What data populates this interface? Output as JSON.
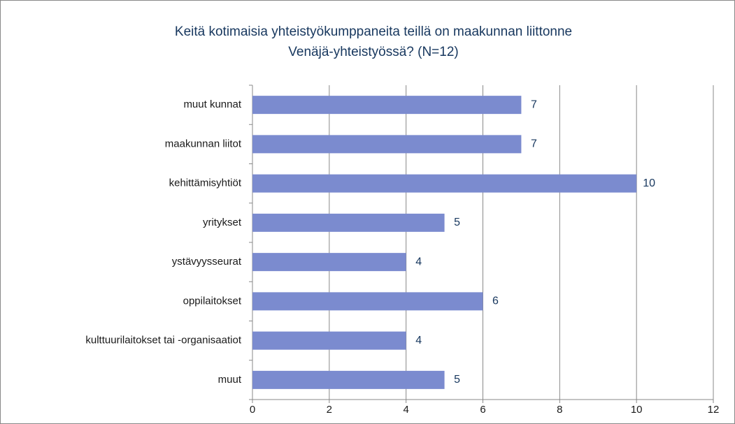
{
  "chart_data": {
    "type": "bar",
    "orientation": "horizontal",
    "title": [
      "Keitä kotimaisia yhteistyökumppaneita teillä on maakunnan liittonne",
      "Venäjä-yhteistyössä? (N=12)"
    ],
    "categories": [
      "muut kunnat",
      "maakunnan liitot",
      "kehittämisyhtiöt",
      "yritykset",
      "ystävyysseurat",
      "oppilaitokset",
      "kulttuurilaitokset tai -organisaatiot",
      "muut"
    ],
    "values": [
      7,
      7,
      10,
      5,
      4,
      6,
      4,
      5
    ],
    "color": "#7b8bcf",
    "xlim": [
      0,
      12
    ],
    "xticks": [
      0,
      2,
      4,
      6,
      8,
      10,
      12
    ],
    "grid": true
  }
}
